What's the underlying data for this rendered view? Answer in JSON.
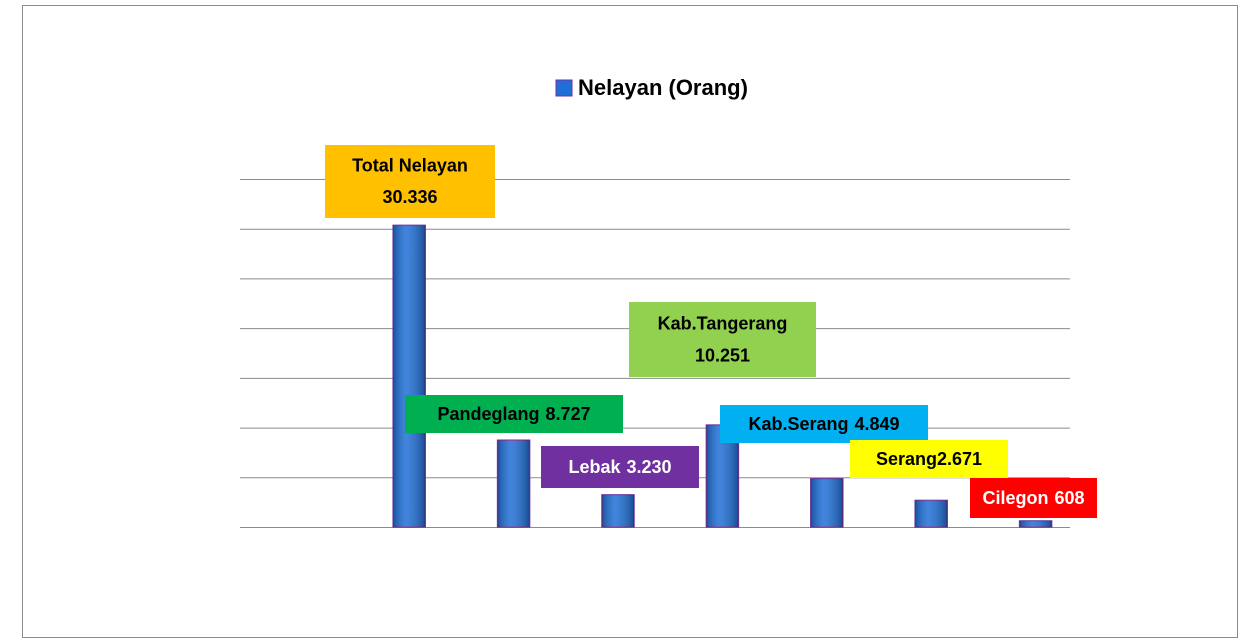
{
  "chart_data": {
    "type": "bar",
    "categories": [
      "Total Nelayan",
      "Pandeglang",
      "Lebak",
      "Kab.Tangerang",
      "Kab.Serang",
      "Serang",
      "Cilegon"
    ],
    "series": [
      {
        "name": "Nelayan (Orang)",
        "color": "#1f6fd6",
        "values": [
          30336,
          8727,
          3230,
          10251,
          4849,
          2671,
          608
        ],
        "value_labels": [
          "30.336",
          "8.727",
          "3.230",
          "10.251",
          "4.849",
          "2.671",
          "608"
        ]
      }
    ],
    "label_colors": [
      "#ffc000",
      "#00b050",
      "#7030a0",
      "#92d050",
      "#00b0f0",
      "#ffff00",
      "#ff0000"
    ],
    "label_text_colors": [
      "#000000",
      "#000000",
      "#ffffff",
      "#000000",
      "#000000",
      "#000000",
      "#ffffff"
    ],
    "ylim": [
      0,
      35000
    ],
    "yticks": [
      0,
      5000,
      10000,
      15000,
      20000,
      25000,
      30000,
      35000
    ],
    "grid": true,
    "legend": "top"
  }
}
